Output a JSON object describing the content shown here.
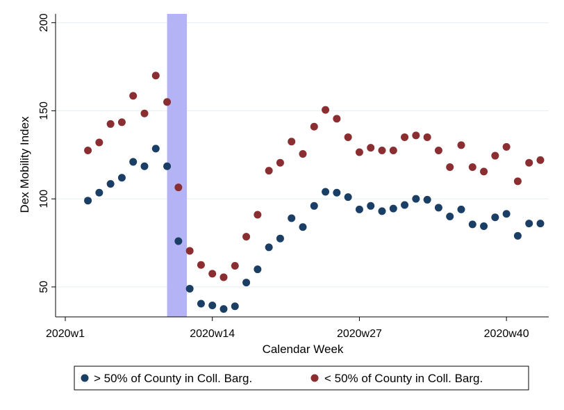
{
  "chart_data": {
    "type": "scatter",
    "title": "",
    "xlabel": "Calendar Week",
    "ylabel": "Dex Mobility Index",
    "xlim": [
      1,
      43
    ],
    "ylim": [
      33,
      205
    ],
    "x_ticks": [
      {
        "value": 1,
        "label": "2020w1"
      },
      {
        "value": 14,
        "label": "2020w14"
      },
      {
        "value": 27,
        "label": "2020w27"
      },
      {
        "value": 40,
        "label": "2020w40"
      }
    ],
    "y_ticks": [
      {
        "value": 50,
        "label": "50"
      },
      {
        "value": 100,
        "label": "100"
      },
      {
        "value": 150,
        "label": "150"
      },
      {
        "value": 200,
        "label": "200"
      }
    ],
    "grid": true,
    "legend_position": "bottom",
    "highlight_band": {
      "x_start": 10,
      "x_end": 11.75,
      "color": "#b3b3f5"
    },
    "series": [
      {
        "name": "> 50% of County in Coll. Barg.",
        "color": "#1b3f64",
        "points": [
          [
            3,
            99
          ],
          [
            4,
            103.5
          ],
          [
            5,
            108.5
          ],
          [
            6,
            112
          ],
          [
            7,
            121
          ],
          [
            8,
            118.5
          ],
          [
            9,
            128.5
          ],
          [
            10,
            118.5
          ],
          [
            11,
            76
          ],
          [
            12,
            49
          ],
          [
            13,
            40.5
          ],
          [
            14,
            39.5
          ],
          [
            15,
            37.5
          ],
          [
            16,
            39
          ],
          [
            17,
            52.5
          ],
          [
            18,
            60
          ],
          [
            19,
            72.5
          ],
          [
            20,
            77.5
          ],
          [
            21,
            89
          ],
          [
            22,
            84
          ],
          [
            23,
            96
          ],
          [
            24,
            104
          ],
          [
            25,
            103.5
          ],
          [
            26,
            101
          ],
          [
            27,
            94
          ],
          [
            28,
            96
          ],
          [
            29,
            93
          ],
          [
            30,
            94.5
          ],
          [
            31,
            96.5
          ],
          [
            32,
            100
          ],
          [
            33,
            99.5
          ],
          [
            34,
            95
          ],
          [
            35,
            90
          ],
          [
            36,
            94
          ],
          [
            37,
            85.5
          ],
          [
            38,
            84.5
          ],
          [
            39,
            89.5
          ],
          [
            40,
            91.5
          ],
          [
            41,
            79
          ],
          [
            42,
            86
          ],
          [
            43,
            86
          ]
        ]
      },
      {
        "name": "< 50% of County in Coll. Barg.",
        "color": "#8b2e32",
        "points": [
          [
            3,
            127.5
          ],
          [
            4,
            132
          ],
          [
            5,
            142.5
          ],
          [
            6,
            143.5
          ],
          [
            7,
            158.5
          ],
          [
            8,
            148.5
          ],
          [
            9,
            170
          ],
          [
            10,
            155
          ],
          [
            11,
            106.5
          ],
          [
            12,
            70.5
          ],
          [
            13,
            62.5
          ],
          [
            14,
            57.5
          ],
          [
            15,
            55.5
          ],
          [
            16,
            62
          ],
          [
            17,
            78.5
          ],
          [
            18,
            91
          ],
          [
            19,
            116
          ],
          [
            20,
            120.5
          ],
          [
            21,
            132.5
          ],
          [
            22,
            125.5
          ],
          [
            23,
            141
          ],
          [
            24,
            150.5
          ],
          [
            25,
            145.5
          ],
          [
            26,
            135
          ],
          [
            27,
            126.5
          ],
          [
            28,
            129
          ],
          [
            29,
            127.5
          ],
          [
            30,
            127.5
          ],
          [
            31,
            135
          ],
          [
            32,
            136
          ],
          [
            33,
            135
          ],
          [
            34,
            127.5
          ],
          [
            35,
            118
          ],
          [
            36,
            130.5
          ],
          [
            37,
            118
          ],
          [
            38,
            115.5
          ],
          [
            39,
            124.5
          ],
          [
            40,
            129.5
          ],
          [
            41,
            110
          ],
          [
            42,
            120.5
          ],
          [
            43,
            122
          ]
        ]
      }
    ]
  }
}
